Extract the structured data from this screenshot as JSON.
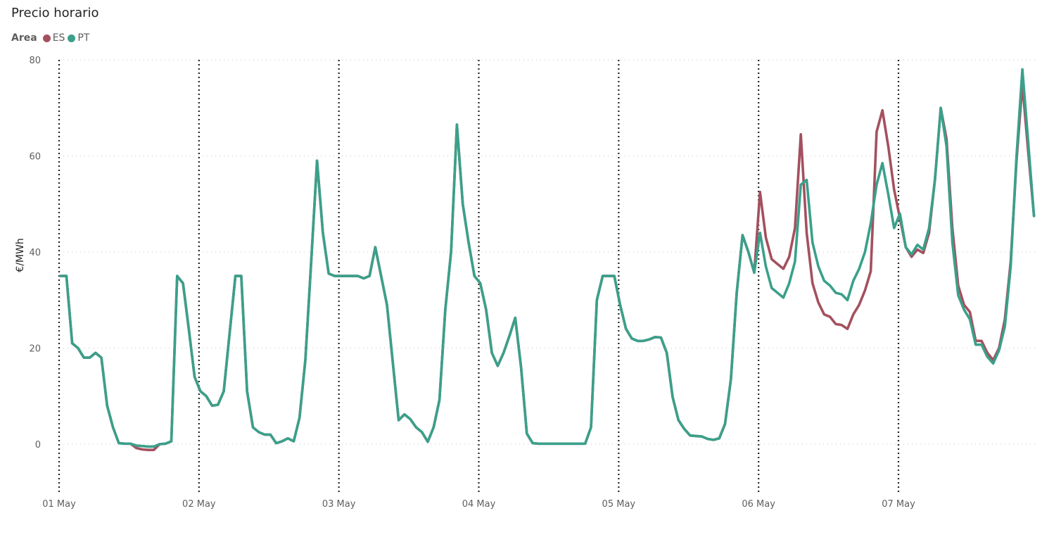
{
  "title": "Precio horario",
  "legend": {
    "title": "Area",
    "items": [
      {
        "name": "ES",
        "color": "#A4505E"
      },
      {
        "name": "PT",
        "color": "#3AA08A"
      }
    ]
  },
  "chart_data": {
    "type": "line",
    "title": "Precio horario",
    "xlabel": "",
    "ylabel": "€/MWh",
    "ylim": [
      -10,
      80
    ],
    "yticks": [
      0,
      20,
      40,
      60,
      80
    ],
    "xlim": [
      0,
      168
    ],
    "xticks": [
      {
        "x": 0,
        "label": "01 May"
      },
      {
        "x": 24,
        "label": "02 May"
      },
      {
        "x": 48,
        "label": "03 May"
      },
      {
        "x": 72,
        "label": "04 May"
      },
      {
        "x": 96,
        "label": "05 May"
      },
      {
        "x": 120,
        "label": "06 May"
      },
      {
        "x": 144,
        "label": "07 May"
      }
    ],
    "grid": true,
    "legend_position": "top-left",
    "series": [
      {
        "name": "PT",
        "color": "#3AA08A",
        "values": [
          35,
          35,
          21,
          20,
          18,
          18,
          19,
          18,
          8,
          3.5,
          0.2,
          0.1,
          0.1,
          -0.3,
          -0.4,
          -0.5,
          -0.5,
          0,
          0.1,
          0.6,
          35,
          33.5,
          24,
          14,
          11,
          10,
          8,
          8.2,
          11,
          23,
          35,
          35,
          11,
          3.5,
          2.5,
          2,
          2,
          0.2,
          0.6,
          1.2,
          0.6,
          5.5,
          17.5,
          38,
          59,
          44,
          35.5,
          35,
          35,
          35,
          35,
          35,
          34.5,
          35,
          41,
          35,
          29,
          17,
          5,
          6.2,
          5.2,
          3.5,
          2.5,
          0.5,
          3.5,
          9.2,
          28,
          40,
          66.5,
          50,
          42,
          35,
          33.5,
          28,
          19,
          16.3,
          19,
          22.5,
          26.3,
          16,
          2.2,
          0.2,
          0.1,
          0.1,
          0.1,
          0.1,
          0.1,
          0.1,
          0.1,
          0.1,
          0.1,
          3.5,
          30,
          35,
          35,
          35,
          29,
          24,
          22,
          21.5,
          21.5,
          21.8,
          22.3,
          22.2,
          19,
          9.8,
          5,
          3.2,
          1.8,
          1.7,
          1.6,
          1.1,
          0.9,
          1.2,
          4.2,
          13.5,
          31.5,
          43.5,
          40,
          35.7,
          44,
          37,
          32.5,
          31.5,
          30.5,
          33.5,
          38,
          54,
          55,
          42,
          37,
          34,
          33,
          31.5,
          31.2,
          30,
          34,
          36.5,
          40,
          46,
          54,
          58.5,
          52,
          45,
          48,
          41,
          39.5,
          41.5,
          40.5,
          45,
          55,
          70,
          62,
          42,
          31,
          28,
          26,
          20.7,
          20.7,
          18.2,
          16.8,
          19.5,
          24.5,
          37,
          60,
          78,
          63,
          47.5
        ]
      },
      {
        "name": "ES",
        "color": "#A4505E",
        "values": [
          35,
          35,
          21,
          20,
          18,
          18,
          19,
          18,
          8,
          3.5,
          0.2,
          0.1,
          0.1,
          -0.8,
          -1.1,
          -1.2,
          -1.2,
          0,
          0.1,
          0.6,
          35,
          33.5,
          24,
          14,
          11,
          10,
          8,
          8.2,
          11,
          23,
          35,
          35,
          11,
          3.5,
          2.5,
          2,
          2,
          0.2,
          0.6,
          1.2,
          0.6,
          5.5,
          17.5,
          38,
          59,
          44,
          35.5,
          35,
          35,
          35,
          35,
          35,
          34.5,
          35,
          41,
          35,
          29,
          17,
          5,
          6.2,
          5.2,
          3.5,
          2.5,
          0.5,
          3.5,
          9.2,
          28,
          40,
          66.5,
          50,
          42,
          35,
          33.5,
          28,
          19,
          16.3,
          19,
          22.5,
          26.3,
          16,
          2.2,
          0.2,
          0.1,
          0.1,
          0.1,
          0.1,
          0.1,
          0.1,
          0.1,
          0.1,
          0.1,
          3.5,
          30,
          35,
          35,
          35,
          29,
          24,
          22,
          21.5,
          21.5,
          21.8,
          22.3,
          22.2,
          19,
          9.8,
          5,
          3.2,
          1.8,
          1.7,
          1.6,
          1.1,
          0.9,
          1.2,
          4.2,
          13.5,
          31.5,
          43.5,
          40,
          35.7,
          52.5,
          43,
          38.5,
          37.5,
          36.5,
          39,
          45,
          64.5,
          44,
          33.5,
          29.5,
          27,
          26.5,
          25,
          24.8,
          24,
          27,
          29,
          32,
          36,
          65,
          69.5,
          62,
          53,
          47,
          41,
          39,
          40.5,
          39.8,
          44,
          55,
          70,
          63.5,
          45,
          33,
          29,
          27.5,
          21.5,
          21.5,
          19,
          17.5,
          20,
          26,
          38,
          59,
          75,
          61,
          47.5
        ]
      }
    ]
  }
}
